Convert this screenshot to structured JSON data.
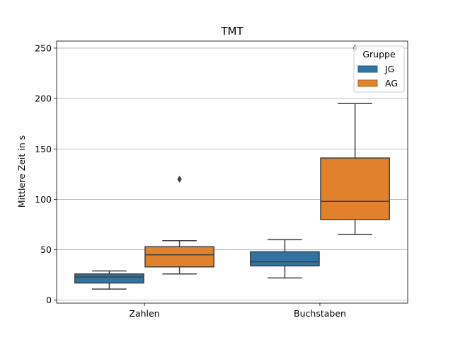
{
  "chart_data": {
    "type": "box",
    "title": "TMT",
    "xlabel": "",
    "ylabel": "Mittlere Zeit in s",
    "categories": [
      "Zahlen",
      "Buchstaben"
    ],
    "ylim": [
      -3,
      257
    ],
    "yticks": [
      0,
      50,
      100,
      150,
      200,
      250
    ],
    "grid": "horizontal",
    "legend": {
      "title": "Gruppe",
      "placement": "top-right"
    },
    "series": [
      {
        "name": "JG",
        "color": "#3274a1",
        "boxes": [
          {
            "category": "Zahlen",
            "whisker_low": 11,
            "q1": 17,
            "median": 23,
            "q3": 26,
            "whisker_high": 29,
            "outliers": []
          },
          {
            "category": "Buchstaben",
            "whisker_low": 22,
            "q1": 34,
            "median": 38,
            "q3": 48,
            "whisker_high": 60,
            "outliers": []
          }
        ]
      },
      {
        "name": "AG",
        "color": "#e1812c",
        "boxes": [
          {
            "category": "Zahlen",
            "whisker_low": 26,
            "q1": 33,
            "median": 45,
            "q3": 53,
            "whisker_high": 59,
            "outliers": [
              120
            ]
          },
          {
            "category": "Buchstaben",
            "whisker_low": 65,
            "q1": 80,
            "median": 98,
            "q3": 141,
            "whisker_high": 195,
            "outliers": [
              250
            ]
          }
        ]
      }
    ]
  }
}
